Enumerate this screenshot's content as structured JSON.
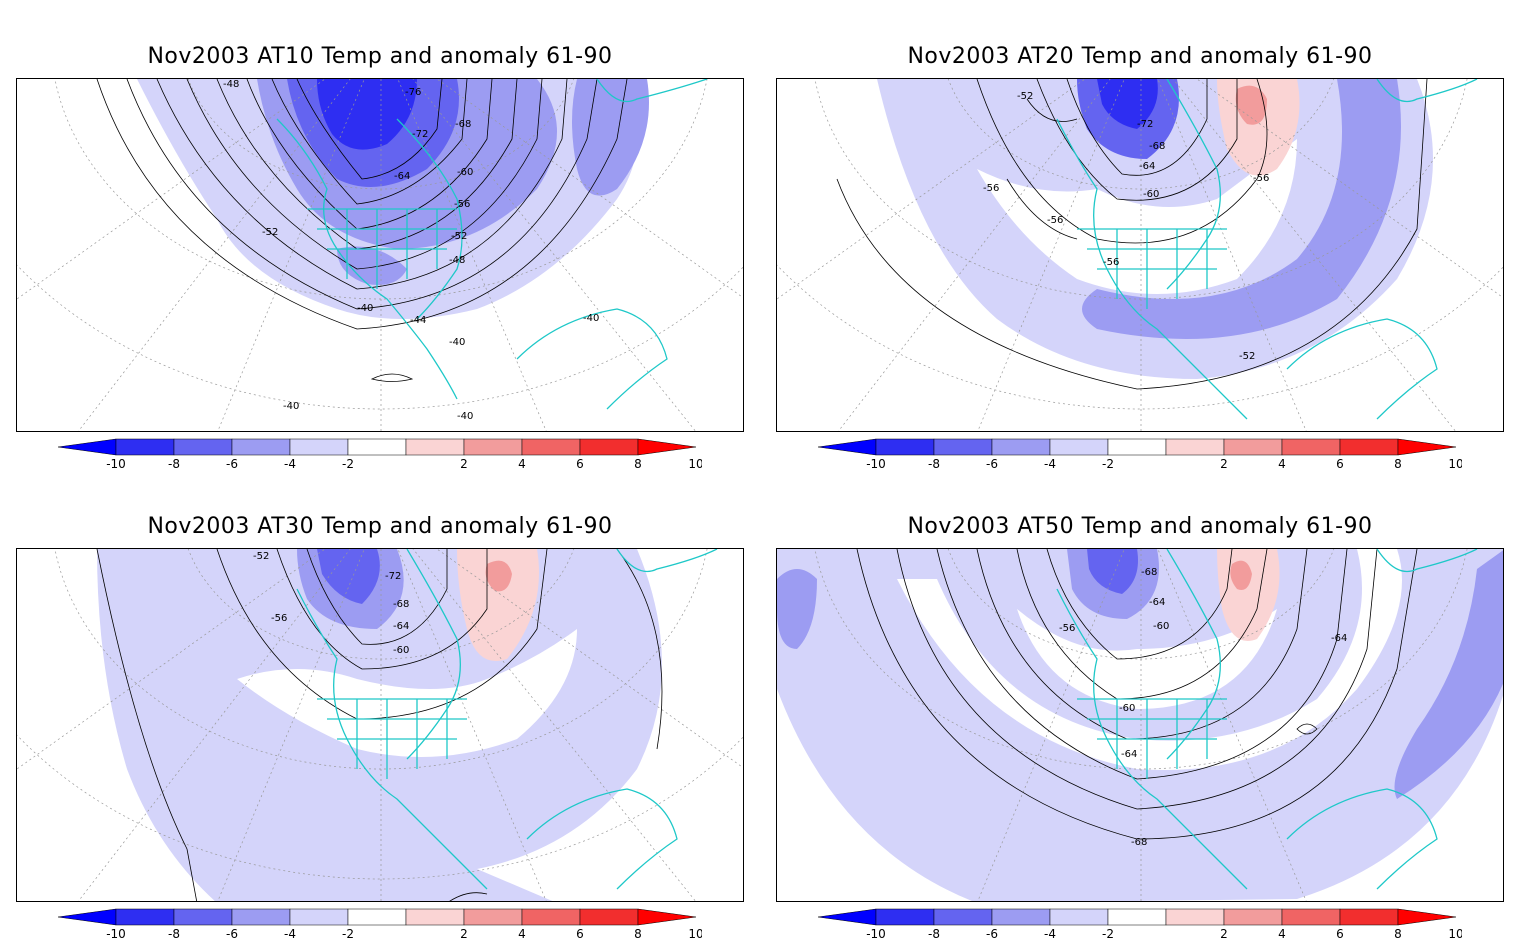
{
  "panels": [
    {
      "title": "Nov2003 AT10 Temp and anomaly 61-90",
      "contour_labels": [
        "-48",
        "-76",
        "-72",
        "-68",
        "-64",
        "-60",
        "-56",
        "-52",
        "-52",
        "-48",
        "-40",
        "-44",
        "-40",
        "-40",
        "-40",
        "-40"
      ]
    },
    {
      "title": "Nov2003 AT20 Temp and anomaly 61-90",
      "contour_labels": [
        "-52",
        "-72",
        "-68",
        "-64",
        "-60",
        "-56",
        "-56",
        "-56",
        "-56",
        "-52"
      ]
    },
    {
      "title": "Nov2003 AT30 Temp and anomaly 61-90",
      "contour_labels": [
        "-52",
        "-72",
        "-68",
        "-56",
        "-64",
        "-60"
      ]
    },
    {
      "title": "Nov2003 AT50 Temp and anomaly 61-90",
      "contour_labels": [
        "-68",
        "-64",
        "-56",
        "-60",
        "-64",
        "-60",
        "-64",
        "-68"
      ]
    }
  ],
  "colorbar": {
    "tick_labels": [
      "-10",
      "-8",
      "-6",
      "-4",
      "-2",
      "2",
      "4",
      "6",
      "8",
      "10"
    ],
    "colors": {
      "neg_arrow": "#0000ff",
      "neg": [
        "#2e2ef2",
        "#6464f0",
        "#9c9cf2",
        "#d4d4fa"
      ],
      "zero": "#ffffff",
      "pos": [
        "#fad4d4",
        "#f29c9c",
        "#f06464",
        "#f22e2e"
      ],
      "pos_arrow": "#ff0000"
    }
  },
  "colors": {
    "coastline": "#1ec8c8",
    "contour": "#000000",
    "grid": "#999999"
  }
}
